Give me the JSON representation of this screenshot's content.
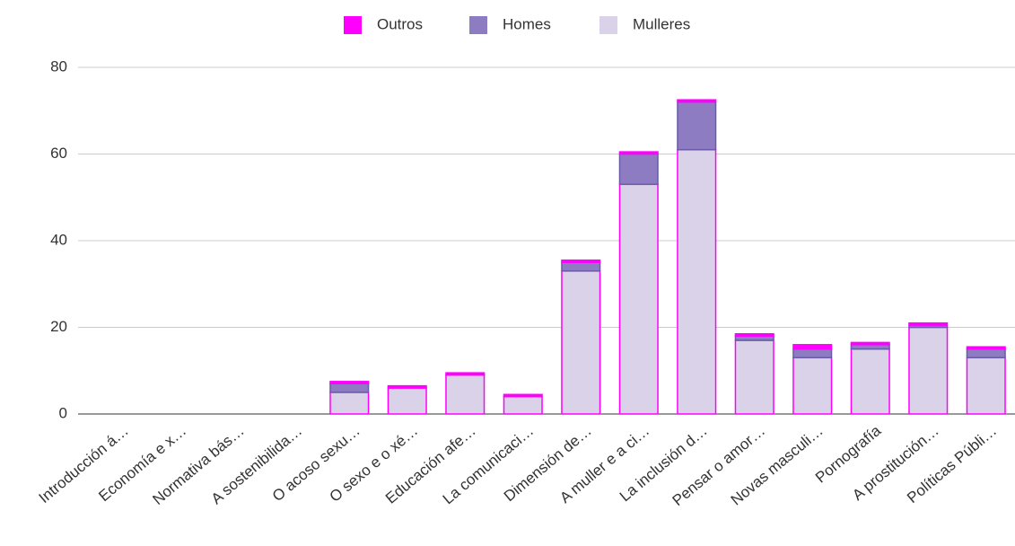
{
  "chart_data": {
    "type": "stacked_bar",
    "categories": [
      "Introducción á…",
      "Economía e x…",
      "Normativa bás…",
      "A sostenibilida…",
      "O acoso sexu…",
      "O sexo e o xé…",
      "Educación afe…",
      "La comunicaci…",
      "Dimensión de…",
      "A muller e a ci…",
      "La inclusión d…",
      "Pensar o amor…",
      "Novas masculi…",
      "Pornografía",
      "A prostitución…",
      "Políticas Públi…"
    ],
    "series": [
      {
        "name": "Outros",
        "color": "#ff00ff",
        "values": [
          0,
          0,
          0,
          0,
          0.5,
          0.5,
          0.5,
          0.5,
          0.5,
          0.5,
          0.5,
          0.5,
          1,
          0.5,
          0.5,
          0.5
        ]
      },
      {
        "name": "Homes",
        "color": "#8e7cc3",
        "values": [
          0,
          0,
          0,
          0,
          2,
          0,
          0,
          0,
          2,
          7,
          11,
          1,
          2,
          1,
          0.5,
          2
        ]
      },
      {
        "name": "Mulleres",
        "color": "#d9d2e9",
        "values": [
          0,
          0,
          0,
          0,
          5,
          6,
          9,
          4,
          33,
          53,
          61,
          17,
          13,
          15,
          20,
          13
        ]
      }
    ],
    "ylim": [
      0,
      80
    ],
    "yticks": [
      0,
      20,
      40,
      60,
      80
    ],
    "grid": true,
    "legend": "top"
  }
}
